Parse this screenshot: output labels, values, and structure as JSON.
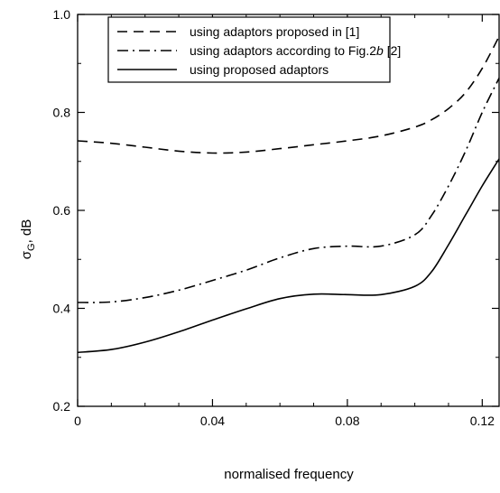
{
  "chart_data": {
    "type": "line",
    "title": "",
    "xlabel": "normalised frequency",
    "ylabel": "σG, dB",
    "ylabel_main": "σ",
    "ylabel_sub": "G",
    "ylabel_rest": ", dB",
    "xlim": [
      0,
      0.125
    ],
    "ylim": [
      0.2,
      1.0
    ],
    "x_ticks": [
      0,
      0.04,
      0.08,
      0.12
    ],
    "x_tick_labels": [
      "0",
      "0.04",
      "0.08",
      "0.12"
    ],
    "y_ticks": [
      0.2,
      0.4,
      0.6,
      0.8,
      1.0
    ],
    "y_tick_labels": [
      "0.2",
      "0.4",
      "0.6",
      "0.8",
      "1.0"
    ],
    "grid": false,
    "legend_position": "top",
    "series": [
      {
        "name": "using adaptors proposed in [1]",
        "style": "dashed",
        "x": [
          0,
          0.01,
          0.02,
          0.03,
          0.04,
          0.05,
          0.06,
          0.07,
          0.08,
          0.09,
          0.1,
          0.105,
          0.11,
          0.115,
          0.12,
          0.125
        ],
        "y": [
          0.742,
          0.737,
          0.729,
          0.721,
          0.717,
          0.719,
          0.726,
          0.734,
          0.742,
          0.752,
          0.77,
          0.785,
          0.808,
          0.84,
          0.89,
          0.955
        ]
      },
      {
        "name": "using adaptors according to Fig.2b [2]",
        "name_prefix": "using adaptors according to Fig.2",
        "name_italic": "b",
        "name_suffix": " [2]",
        "style": "dashdot",
        "x": [
          0,
          0.01,
          0.02,
          0.03,
          0.04,
          0.05,
          0.06,
          0.07,
          0.08,
          0.09,
          0.1,
          0.105,
          0.11,
          0.115,
          0.12,
          0.125
        ],
        "y": [
          0.412,
          0.413,
          0.422,
          0.437,
          0.457,
          0.478,
          0.503,
          0.522,
          0.527,
          0.527,
          0.55,
          0.59,
          0.65,
          0.72,
          0.8,
          0.87
        ]
      },
      {
        "name": "using proposed adaptors",
        "style": "solid",
        "x": [
          0,
          0.01,
          0.02,
          0.03,
          0.04,
          0.05,
          0.06,
          0.07,
          0.08,
          0.09,
          0.1,
          0.105,
          0.11,
          0.115,
          0.12,
          0.125
        ],
        "y": [
          0.31,
          0.316,
          0.331,
          0.352,
          0.376,
          0.399,
          0.42,
          0.429,
          0.428,
          0.428,
          0.445,
          0.475,
          0.53,
          0.59,
          0.65,
          0.705
        ]
      }
    ]
  }
}
